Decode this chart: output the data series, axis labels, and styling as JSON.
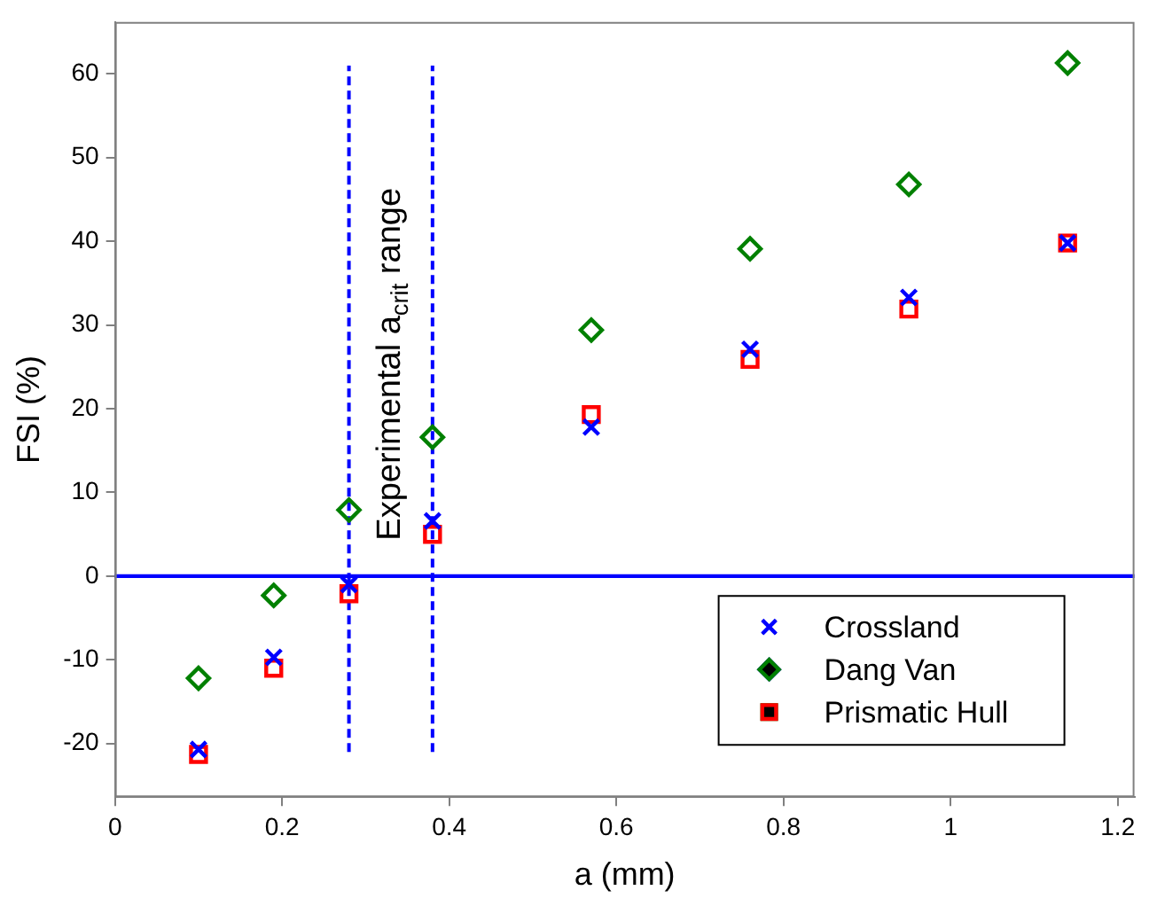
{
  "chart_data": {
    "type": "scatter",
    "xlabel": "a (mm)",
    "ylabel": "FSI (%)",
    "xlim": [
      0,
      1.22
    ],
    "xticks": [
      0,
      0.2,
      0.4,
      0.6,
      0.8,
      1,
      1.2
    ],
    "ylim": [
      -26.4,
      66.2
    ],
    "yticks": [
      -20,
      -10,
      0,
      10,
      20,
      30,
      40,
      50,
      60
    ],
    "grid": false,
    "legend": "bottom right",
    "series": [
      {
        "name": "Crossland",
        "color": "#0000ff",
        "marker": "cross",
        "x": [
          0.1,
          0.19,
          0.28,
          0.38,
          0.57,
          0.76,
          0.95,
          1.14
        ],
        "values": [
          -20.7,
          -9.7,
          -1,
          6.6,
          17.8,
          27.1,
          33.3,
          39.8
        ]
      },
      {
        "name": "Dang Van",
        "color": "#008000",
        "marker": "diamond",
        "x": [
          0.1,
          0.19,
          0.28,
          0.38,
          0.57,
          0.76,
          0.95,
          1.14
        ],
        "values": [
          -12.2,
          -2.3,
          7.9,
          16.6,
          29.4,
          39.1,
          46.8,
          61.3
        ]
      },
      {
        "name": "Prismatic Hull",
        "color": "#ff0000",
        "marker": "square",
        "x": [
          0.1,
          0.19,
          0.28,
          0.38,
          0.57,
          0.76,
          0.95,
          1.14
        ],
        "values": [
          -21.3,
          -11,
          -2.1,
          5,
          19.3,
          25.9,
          31.9,
          39.8
        ]
      },
      {
        "type": "line",
        "color": "#0000ff",
        "line_style": "dashed",
        "marker": "none",
        "x": [
          0.28,
          0.28
        ],
        "values": [
          -21,
          61
        ]
      },
      {
        "type": "line",
        "color": "#0000ff",
        "line_style": "dashed",
        "marker": "none",
        "x": [
          0.38,
          0.38
        ],
        "values": [
          -21,
          61
        ]
      }
    ],
    "ref_lines": [
      {
        "axis": "y",
        "value": 0,
        "color": "#0000ff",
        "line_style": "solid"
      }
    ],
    "annotations": [
      "Experimental a$_{crit}$ range"
    ]
  }
}
